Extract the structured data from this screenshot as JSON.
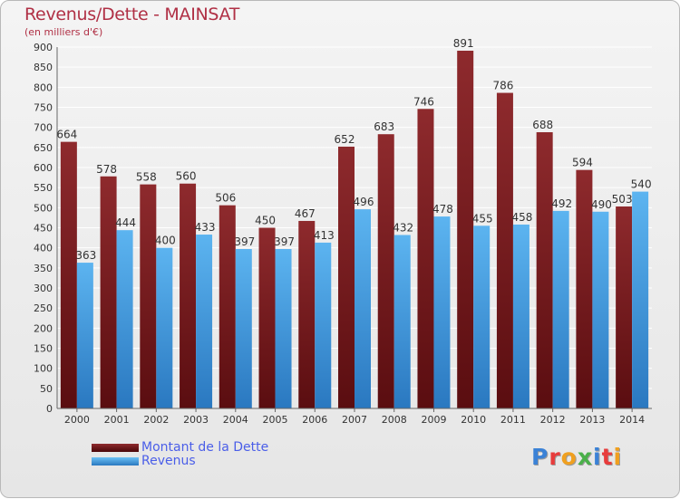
{
  "title": "Revenus/Dette - MAINSAT",
  "subtitle": "(en milliers d'€)",
  "legend": {
    "dette": "Montant de la Dette",
    "revenus": "Revenus"
  },
  "logo": {
    "text": "Proxiti",
    "colors": [
      "#3b82d6",
      "#e83c3c",
      "#f0a020",
      "#4ab04a",
      "#3b82d6",
      "#e83c3c",
      "#f0a020"
    ]
  },
  "colors": {
    "dette": "#7e1f22",
    "revenus": "#4aa3e6",
    "grid": "#ffffff",
    "axis_text": "#333333",
    "label_text": "#333333"
  },
  "chart_data": {
    "type": "bar",
    "title": "Revenus/Dette - MAINSAT",
    "subtitle": "(en milliers d'€)",
    "categories": [
      "2000",
      "2001",
      "2002",
      "2003",
      "2004",
      "2005",
      "2006",
      "2007",
      "2008",
      "2009",
      "2010",
      "2011",
      "2012",
      "2013",
      "2014"
    ],
    "series": [
      {
        "name": "Montant de la Dette",
        "values": [
          664,
          578,
          558,
          560,
          506,
          450,
          467,
          652,
          683,
          746,
          891,
          786,
          688,
          594,
          503
        ]
      },
      {
        "name": "Revenus",
        "values": [
          363,
          444,
          400,
          433,
          397,
          397,
          413,
          496,
          432,
          478,
          455,
          458,
          492,
          490,
          540
        ]
      }
    ],
    "ylim": [
      0,
      900
    ],
    "yticks": [
      0,
      50,
      100,
      150,
      200,
      250,
      300,
      350,
      400,
      450,
      500,
      550,
      600,
      650,
      700,
      750,
      800,
      850,
      900
    ],
    "grid": true,
    "legend_position": "bottom-left"
  }
}
